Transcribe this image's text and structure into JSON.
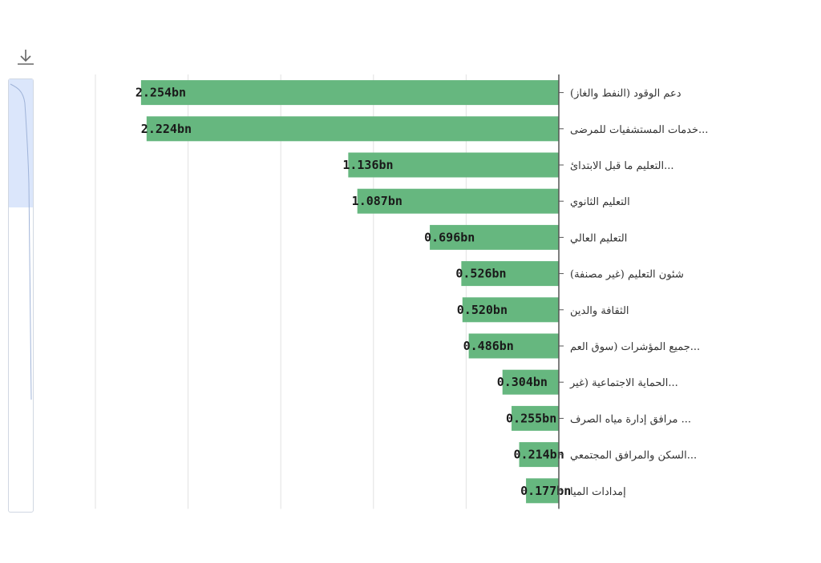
{
  "toolbar": {
    "download_icon": "download-icon"
  },
  "chart_data": {
    "type": "bar",
    "orientation": "horizontal",
    "categories": [
      "دعم الوقود (النفط والغاز)",
      "خدمات المستشفيات للمرضى...",
      "التعليم ما قبل الابتدائ...",
      "التعليم الثانوي",
      "التعليم العالي",
      "شئون التعليم (غير مصنفة)",
      "الثقافة والدين",
      "جميع المؤشرات (سوق العم...",
      "الحماية الاجتماعية (غير...",
      "مرافق إدارة مياه الصرف ...",
      "السكن والمرافق المجتمعي...",
      "إمدادات الميا"
    ],
    "values": [
      2.254,
      2.224,
      1.136,
      1.087,
      0.696,
      0.526,
      0.52,
      0.486,
      0.304,
      0.255,
      0.214,
      0.177
    ],
    "value_labels": [
      "2.254bn",
      "2.224bn",
      "1.136bn",
      "1.087bn",
      "0.696bn",
      "0.526bn",
      "0.520bn",
      "0.486bn",
      "0.304bn",
      "0.255bn",
      "0.214bn",
      "0.177bn"
    ],
    "xlim": [
      0,
      2.5
    ],
    "grid": true,
    "bar_color": "#66b77f",
    "axis_color": "#555555",
    "grid_color": "#e2e2e2"
  }
}
